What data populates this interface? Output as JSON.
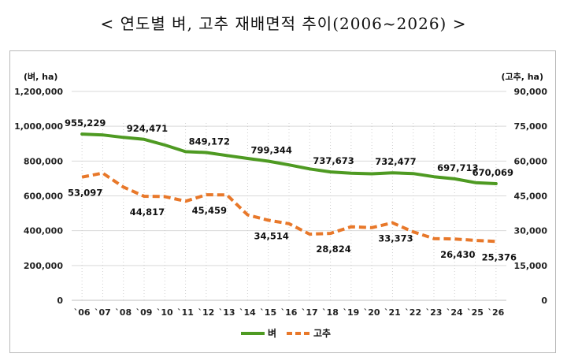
{
  "title": "< 연도별 벼, 고추 재배면적 추이(2006~2026) >",
  "chart_data": {
    "type": "line",
    "title": "< 연도별 벼, 고추 재배면적 추이(2006~2026) >",
    "left_unit": "(벼, ha)",
    "right_unit": "(고추, ha)",
    "categories": [
      "`06",
      "`07",
      "`08",
      "`09",
      "`10",
      "`11",
      "`12",
      "`13",
      "`14",
      "`15",
      "`16",
      "`17",
      "`18",
      "`19",
      "`20",
      "`21",
      "`22",
      "`23",
      "`24",
      "`25",
      "`26"
    ],
    "left_ticks": [
      "0",
      "200,000",
      "400,000",
      "600,000",
      "800,000",
      "1,000,000",
      "1,200,000"
    ],
    "right_ticks": [
      "0",
      "15,000",
      "30,000",
      "45,000",
      "60,000",
      "75,000",
      "90,000"
    ],
    "ylim_left": [
      0,
      1200000
    ],
    "ylim_right": [
      0,
      90000
    ],
    "grid": true,
    "legend_position": "bottom",
    "series": [
      {
        "name": "벼",
        "axis": "left",
        "color": "#4e9a22",
        "style": "solid",
        "values": [
          955229,
          950000,
          936000,
          924471,
          892000,
          854000,
          849172,
          832000,
          815000,
          799344,
          778000,
          755000,
          737673,
          730000,
          727000,
          732477,
          728000,
          710000,
          697713,
          676000,
          670069
        ],
        "labels": {
          "0": "955,229",
          "3": "924,471",
          "6": "849,172",
          "9": "799,344",
          "12": "737,673",
          "15": "732,477",
          "18": "697,713",
          "20": "670,069"
        }
      },
      {
        "name": "고추",
        "axis": "right",
        "color": "#e8782a",
        "style": "dashed",
        "values": [
          53097,
          54800,
          48800,
          44817,
          44700,
          42700,
          45459,
          45400,
          36800,
          34514,
          33000,
          28500,
          28824,
          31700,
          31300,
          33373,
          29500,
          26600,
          26430,
          25800,
          25376
        ],
        "labels": {
          "0": "53,097",
          "3": "44,817",
          "6": "45,459",
          "9": "34,514",
          "12": "28,824",
          "15": "33,373",
          "18": "26,430",
          "20": "25,376"
        }
      }
    ]
  }
}
